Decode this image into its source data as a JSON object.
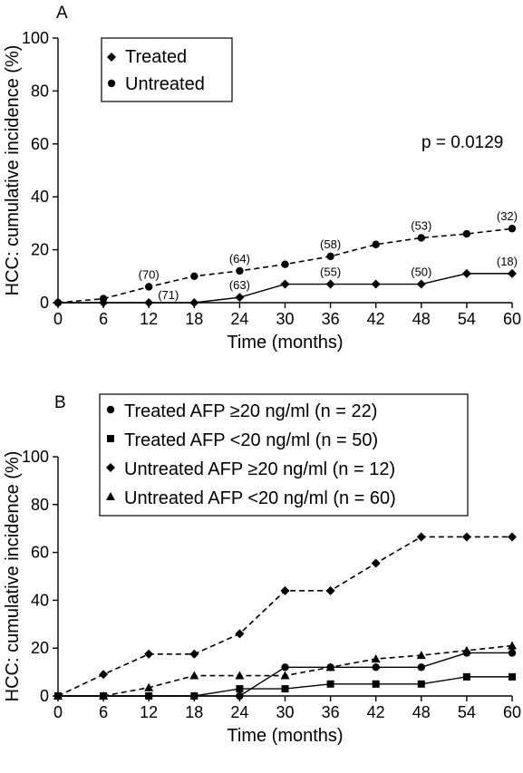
{
  "chart_data": [
    {
      "type": "line",
      "panel": "A",
      "xlabel": "Time (months)",
      "ylabel": "HCC: cumulative incidence (%)",
      "xlim": [
        0,
        60
      ],
      "ylim": [
        0,
        100
      ],
      "xticks": [
        0,
        6,
        12,
        18,
        24,
        30,
        36,
        42,
        48,
        54,
        60
      ],
      "yticks": [
        0,
        20,
        40,
        60,
        80,
        100
      ],
      "annotation": "p = 0.0129",
      "legend_position": "top-left",
      "series": [
        {
          "name": "Treated",
          "marker": "diamond",
          "linestyle": "solid",
          "x": [
            0,
            6,
            12,
            18,
            24,
            30,
            36,
            42,
            48,
            54,
            60
          ],
          "values": [
            0,
            0,
            0,
            0,
            2,
            7,
            7,
            7,
            7,
            11,
            11
          ],
          "point_labels": [
            {
              "x": 12,
              "text": "(71)"
            },
            {
              "x": 24,
              "text": "(63)"
            },
            {
              "x": 36,
              "text": "(55)"
            },
            {
              "x": 48,
              "text": "(50)"
            },
            {
              "x": 60,
              "text": "(18)"
            }
          ]
        },
        {
          "name": "Untreated",
          "marker": "circle",
          "linestyle": "dashed",
          "x": [
            0,
            6,
            12,
            18,
            24,
            30,
            36,
            42,
            48,
            54,
            60
          ],
          "values": [
            0,
            1.5,
            6,
            10,
            12,
            14.5,
            17.5,
            22,
            24.5,
            26,
            28
          ],
          "point_labels": [
            {
              "x": 12,
              "text": "(70)"
            },
            {
              "x": 24,
              "text": "(64)"
            },
            {
              "x": 36,
              "text": "(58)"
            },
            {
              "x": 48,
              "text": "(53)"
            },
            {
              "x": 60,
              "text": "(32)"
            }
          ]
        }
      ]
    },
    {
      "type": "line",
      "panel": "B",
      "xlabel": "Time (months)",
      "ylabel": "HCC: cumulative incidence (%)",
      "xlim": [
        0,
        60
      ],
      "ylim": [
        0,
        100
      ],
      "xticks": [
        0,
        6,
        12,
        18,
        24,
        30,
        36,
        42,
        48,
        54,
        60
      ],
      "yticks": [
        0,
        20,
        40,
        60,
        80,
        100
      ],
      "legend_position": "top-left",
      "series": [
        {
          "name": "Treated AFP ≥20 ng/ml (n = 22)",
          "marker": "circle",
          "linestyle": "solid",
          "x": [
            0,
            6,
            12,
            18,
            24,
            30,
            36,
            42,
            48,
            54,
            60
          ],
          "values": [
            0,
            0,
            0,
            0,
            0,
            12,
            12,
            12,
            12,
            18,
            18
          ]
        },
        {
          "name": "Treated AFP <20 ng/ml (n = 50)",
          "marker": "square",
          "linestyle": "solid",
          "x": [
            0,
            6,
            12,
            18,
            24,
            30,
            36,
            42,
            48,
            54,
            60
          ],
          "values": [
            0,
            0,
            0,
            0,
            3,
            3,
            5,
            5,
            5,
            8,
            8
          ]
        },
        {
          "name": "Untreated AFP ≥20 ng/ml (n = 12)",
          "marker": "diamond",
          "linestyle": "dashed",
          "x": [
            0,
            6,
            12,
            18,
            24,
            30,
            36,
            42,
            48,
            54,
            60
          ],
          "values": [
            0,
            9,
            17.5,
            17.5,
            26,
            44,
            44,
            55.5,
            66.5,
            66.5,
            66.5
          ]
        },
        {
          "name": "Untreated AFP <20 ng/ml (n = 60)",
          "marker": "triangle",
          "linestyle": "dashed",
          "x": [
            0,
            6,
            12,
            18,
            24,
            30,
            36,
            42,
            48,
            54,
            60
          ],
          "values": [
            0,
            0,
            3.5,
            8.5,
            8.5,
            8.5,
            12,
            15.5,
            17,
            19,
            21
          ]
        }
      ]
    }
  ]
}
